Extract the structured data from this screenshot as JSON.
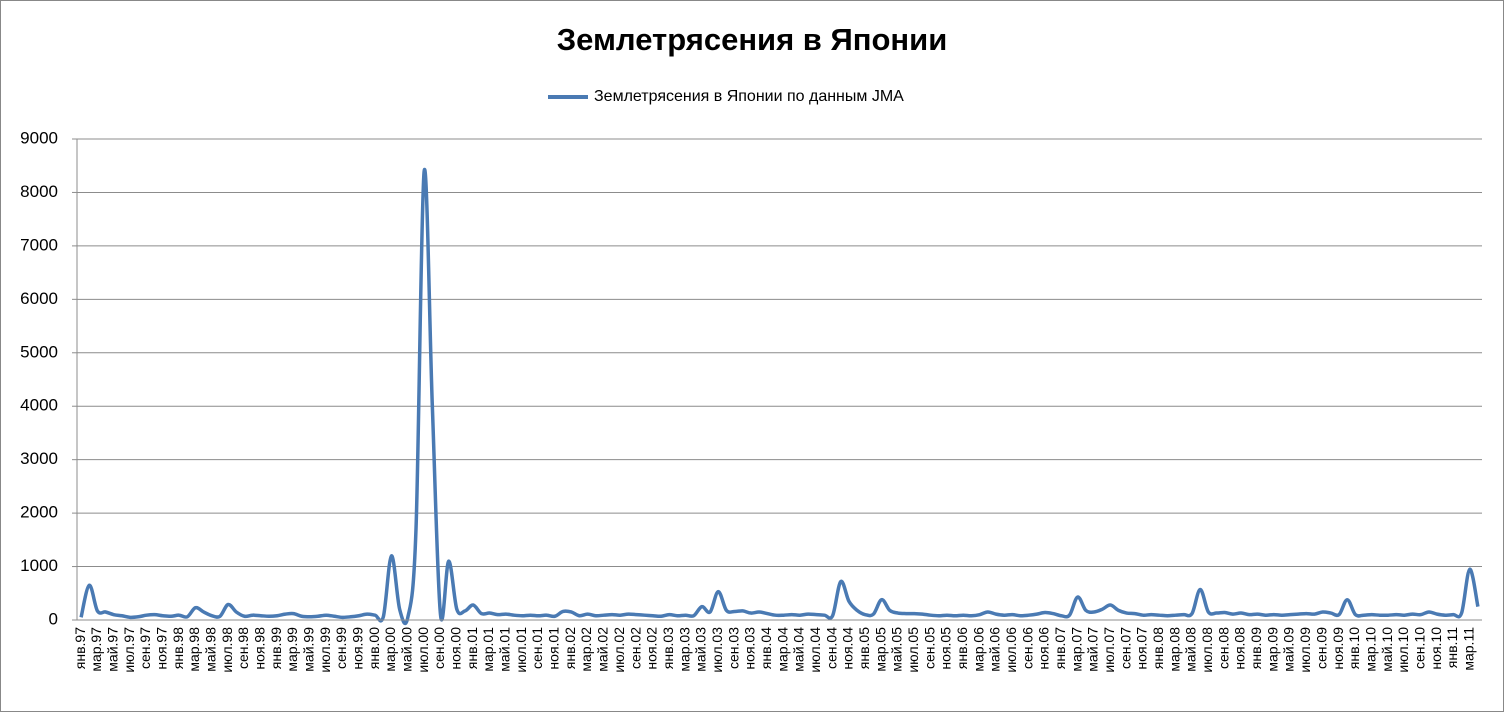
{
  "chart_data": {
    "type": "line",
    "title": "Землетрясения в Японии",
    "categories": [
      "янв.97",
      null,
      "мар.97",
      null,
      "май.97",
      null,
      "июл.97",
      null,
      "сен.97",
      null,
      "ноя.97",
      null,
      "янв.98",
      null,
      "мар.98",
      null,
      "май.98",
      null,
      "июл.98",
      null,
      "сен.98",
      null,
      "ноя.98",
      null,
      "янв.99",
      null,
      "мар.99",
      null,
      "май.99",
      null,
      "июл.99",
      null,
      "сен.99",
      null,
      "ноя.99",
      null,
      "янв.00",
      null,
      "мар.00",
      null,
      "май.00",
      null,
      "июл.00",
      null,
      "сен.00",
      null,
      "ноя.00",
      null,
      "янв.01",
      null,
      "мар.01",
      null,
      "май.01",
      null,
      "июл.01",
      null,
      "сен.01",
      null,
      "ноя.01",
      null,
      "янв.02",
      null,
      "мар.02",
      null,
      "май.02",
      null,
      "июл.02",
      null,
      "сен.02",
      null,
      "ноя.02",
      null,
      "янв.03",
      null,
      "мар.03",
      null,
      "май.03",
      null,
      "июл.03",
      null,
      "сен.03",
      null,
      "ноя.03",
      null,
      "янв.04",
      null,
      "мар.04",
      null,
      "май.04",
      null,
      "июл.04",
      null,
      "сен.04",
      null,
      "ноя.04",
      null,
      "янв.05",
      null,
      "мар.05",
      null,
      "май.05",
      null,
      "июл.05",
      null,
      "сен.05",
      null,
      "ноя.05",
      null,
      "янв.06",
      null,
      "мар.06",
      null,
      "май.06",
      null,
      "июл.06",
      null,
      "сен.06",
      null,
      "ноя.06",
      null,
      "янв.07",
      null,
      "мар.07",
      null,
      "май.07",
      null,
      "июл.07",
      null,
      "сен.07",
      null,
      "ноя.07",
      null,
      "янв.08",
      null,
      "мар.08",
      null,
      "май.08",
      null,
      "июл.08",
      null,
      "сен.08",
      null,
      "ноя.08",
      null,
      "янв.09",
      null,
      "мар.09",
      null,
      "май.09",
      null,
      "июл.09",
      null,
      "сен.09",
      null,
      "ноя.09",
      null,
      "янв.10",
      null,
      "мар.10",
      null,
      "май.10",
      null,
      "июл.10",
      null,
      "сен.10",
      null,
      "ноя.10",
      null,
      "янв.11",
      null,
      "мар.11",
      null
    ],
    "series": [
      {
        "name": "Землетрясения в Японии по данным JMA",
        "color": "#4a7ab3",
        "values": [
          50,
          650,
          170,
          150,
          100,
          80,
          50,
          60,
          90,
          100,
          80,
          70,
          90,
          60,
          230,
          150,
          80,
          70,
          290,
          150,
          70,
          90,
          80,
          70,
          80,
          110,
          120,
          70,
          60,
          70,
          90,
          70,
          50,
          60,
          80,
          110,
          90,
          60,
          1200,
          200,
          50,
          1700,
          8400,
          4000,
          100,
          1100,
          200,
          170,
          280,
          120,
          130,
          100,
          110,
          90,
          80,
          90,
          80,
          90,
          70,
          160,
          150,
          80,
          110,
          80,
          90,
          100,
          90,
          110,
          100,
          90,
          80,
          70,
          100,
          80,
          90,
          80,
          250,
          150,
          530,
          180,
          160,
          170,
          130,
          150,
          120,
          90,
          90,
          100,
          90,
          110,
          100,
          90,
          80,
          720,
          350,
          180,
          100,
          110,
          380,
          180,
          130,
          120,
          120,
          110,
          90,
          80,
          90,
          80,
          90,
          80,
          100,
          150,
          110,
          90,
          100,
          80,
          90,
          110,
          140,
          120,
          80,
          90,
          430,
          180,
          150,
          200,
          280,
          180,
          130,
          120,
          90,
          100,
          90,
          80,
          90,
          100,
          120,
          570,
          150,
          130,
          140,
          110,
          130,
          100,
          110,
          90,
          100,
          90,
          100,
          110,
          120,
          110,
          150,
          130,
          100,
          380,
          100,
          90,
          100,
          90,
          90,
          100,
          90,
          110,
          100,
          150,
          110,
          90,
          100,
          130,
          950,
          250
        ]
      }
    ],
    "ylim": [
      0,
      9000
    ],
    "yticks": [
      0,
      1000,
      2000,
      3000,
      4000,
      5000,
      6000,
      7000,
      8000,
      9000
    ],
    "grid": true
  }
}
